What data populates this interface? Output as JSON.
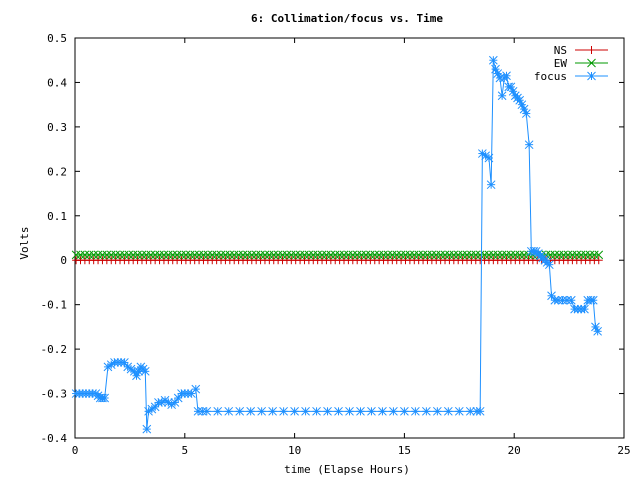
{
  "chart_data": {
    "type": "line",
    "title": "6: Collimation/focus vs. Time",
    "xlabel": "time (Elapse Hours)",
    "ylabel": "Volts",
    "xlim": [
      0,
      25
    ],
    "ylim": [
      -0.4,
      0.5
    ],
    "xticks": [
      0,
      5,
      10,
      15,
      20,
      25
    ],
    "yticks": [
      -0.4,
      -0.3,
      -0.2,
      -0.1,
      0,
      0.1,
      0.2,
      0.3,
      0.4,
      0.5
    ],
    "xtick_labels": [
      "0",
      "5",
      "10",
      "15",
      "20",
      "25"
    ],
    "ytick_labels": [
      "-0.4",
      "-0.3",
      "-0.2",
      "-0.1",
      "0",
      "0.1",
      "0.2",
      "0.3",
      "0.4",
      "0.5"
    ],
    "grid": false,
    "legend_position": "top-right",
    "series": [
      {
        "name": "NS",
        "color": "#cc0000",
        "marker": "plus",
        "x_start": 0.05,
        "x_end": 23.85,
        "x_step": 0.2,
        "constant": 0.0
      },
      {
        "name": "EW",
        "color": "#009900",
        "marker": "cross",
        "x_start": 0.05,
        "x_end": 23.85,
        "x_step": 0.2,
        "constant": 0.012
      },
      {
        "name": "focus",
        "color": "#1e90ff",
        "marker": "star",
        "points": [
          [
            0.05,
            -0.3
          ],
          [
            0.2,
            -0.3
          ],
          [
            0.35,
            -0.3
          ],
          [
            0.5,
            -0.3
          ],
          [
            0.65,
            -0.3
          ],
          [
            0.8,
            -0.3
          ],
          [
            0.95,
            -0.3
          ],
          [
            1.05,
            -0.305
          ],
          [
            1.15,
            -0.31
          ],
          [
            1.25,
            -0.31
          ],
          [
            1.35,
            -0.31
          ],
          [
            1.5,
            -0.24
          ],
          [
            1.65,
            -0.235
          ],
          [
            1.8,
            -0.23
          ],
          [
            1.95,
            -0.23
          ],
          [
            2.1,
            -0.23
          ],
          [
            2.25,
            -0.23
          ],
          [
            2.4,
            -0.24
          ],
          [
            2.55,
            -0.245
          ],
          [
            2.7,
            -0.25
          ],
          [
            2.8,
            -0.26
          ],
          [
            2.9,
            -0.25
          ],
          [
            3.0,
            -0.24
          ],
          [
            3.1,
            -0.245
          ],
          [
            3.2,
            -0.25
          ],
          [
            3.27,
            -0.38
          ],
          [
            3.35,
            -0.34
          ],
          [
            3.5,
            -0.335
          ],
          [
            3.65,
            -0.33
          ],
          [
            3.8,
            -0.32
          ],
          [
            3.95,
            -0.32
          ],
          [
            4.1,
            -0.315
          ],
          [
            4.25,
            -0.32
          ],
          [
            4.4,
            -0.325
          ],
          [
            4.55,
            -0.32
          ],
          [
            4.7,
            -0.31
          ],
          [
            4.85,
            -0.3
          ],
          [
            5.0,
            -0.3
          ],
          [
            5.15,
            -0.3
          ],
          [
            5.3,
            -0.3
          ],
          [
            5.5,
            -0.29
          ],
          [
            5.6,
            -0.34
          ],
          [
            5.8,
            -0.34
          ],
          [
            6.0,
            -0.34
          ],
          [
            6.5,
            -0.34
          ],
          [
            7.0,
            -0.34
          ],
          [
            7.5,
            -0.34
          ],
          [
            8.0,
            -0.34
          ],
          [
            8.5,
            -0.34
          ],
          [
            9.0,
            -0.34
          ],
          [
            9.5,
            -0.34
          ],
          [
            10.0,
            -0.34
          ],
          [
            10.5,
            -0.34
          ],
          [
            11.0,
            -0.34
          ],
          [
            11.5,
            -0.34
          ],
          [
            12.0,
            -0.34
          ],
          [
            12.5,
            -0.34
          ],
          [
            13.0,
            -0.34
          ],
          [
            13.5,
            -0.34
          ],
          [
            14.0,
            -0.34
          ],
          [
            14.5,
            -0.34
          ],
          [
            15.0,
            -0.34
          ],
          [
            15.5,
            -0.34
          ],
          [
            16.0,
            -0.34
          ],
          [
            16.5,
            -0.34
          ],
          [
            17.0,
            -0.34
          ],
          [
            17.5,
            -0.34
          ],
          [
            18.0,
            -0.34
          ],
          [
            18.3,
            -0.34
          ],
          [
            18.45,
            -0.34
          ],
          [
            18.55,
            0.24
          ],
          [
            18.7,
            0.235
          ],
          [
            18.85,
            0.23
          ],
          [
            18.95,
            0.17
          ],
          [
            19.05,
            0.45
          ],
          [
            19.15,
            0.43
          ],
          [
            19.25,
            0.42
          ],
          [
            19.35,
            0.41
          ],
          [
            19.45,
            0.37
          ],
          [
            19.55,
            0.41
          ],
          [
            19.65,
            0.415
          ],
          [
            19.75,
            0.39
          ],
          [
            19.85,
            0.39
          ],
          [
            19.95,
            0.38
          ],
          [
            20.05,
            0.37
          ],
          [
            20.15,
            0.365
          ],
          [
            20.25,
            0.36
          ],
          [
            20.35,
            0.35
          ],
          [
            20.45,
            0.34
          ],
          [
            20.55,
            0.33
          ],
          [
            20.68,
            0.26
          ],
          [
            20.78,
            0.02
          ],
          [
            20.9,
            0.02
          ],
          [
            21.0,
            0.02
          ],
          [
            21.1,
            0.015
          ],
          [
            21.2,
            0.01
          ],
          [
            21.3,
            0.005
          ],
          [
            21.4,
            0.0
          ],
          [
            21.5,
            -0.005
          ],
          [
            21.6,
            -0.01
          ],
          [
            21.7,
            -0.08
          ],
          [
            21.85,
            -0.09
          ],
          [
            22.0,
            -0.09
          ],
          [
            22.2,
            -0.09
          ],
          [
            22.4,
            -0.09
          ],
          [
            22.6,
            -0.09
          ],
          [
            22.75,
            -0.11
          ],
          [
            22.9,
            -0.11
          ],
          [
            23.05,
            -0.11
          ],
          [
            23.2,
            -0.11
          ],
          [
            23.35,
            -0.09
          ],
          [
            23.5,
            -0.09
          ],
          [
            23.6,
            -0.09
          ],
          [
            23.7,
            -0.15
          ],
          [
            23.8,
            -0.16
          ]
        ]
      }
    ]
  }
}
